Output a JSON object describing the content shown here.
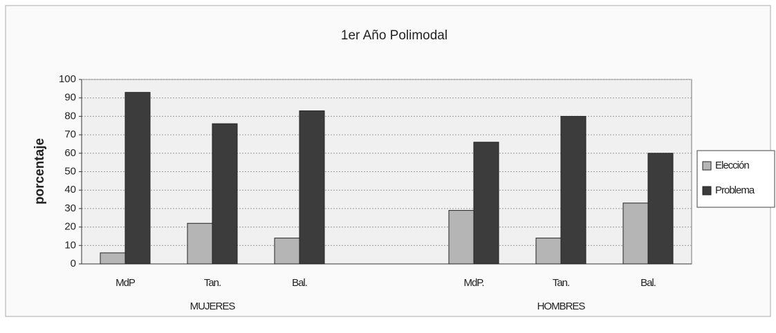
{
  "chart_data": {
    "type": "bar",
    "title": "1er Año Polimodal",
    "y_label": "porcentaje",
    "categories": [
      "MdP",
      "Tan.",
      "Bal.",
      null,
      "MdP.",
      "Tan.",
      "Bal."
    ],
    "group_labels": [
      "MUJERES",
      "HOMBRES"
    ],
    "series": [
      {
        "name": "Elección",
        "color": "#b5b5b5",
        "values": [
          6,
          22,
          14,
          null,
          29,
          14,
          33
        ]
      },
      {
        "name": "Problema",
        "color": "#3c3c3c",
        "values": [
          93,
          76,
          83,
          null,
          66,
          80,
          60
        ]
      }
    ],
    "ylim": [
      0,
      100
    ],
    "yticks": [
      0,
      10,
      20,
      30,
      40,
      50,
      60,
      70,
      80,
      90,
      100
    ],
    "grid": true,
    "legend": "right"
  }
}
